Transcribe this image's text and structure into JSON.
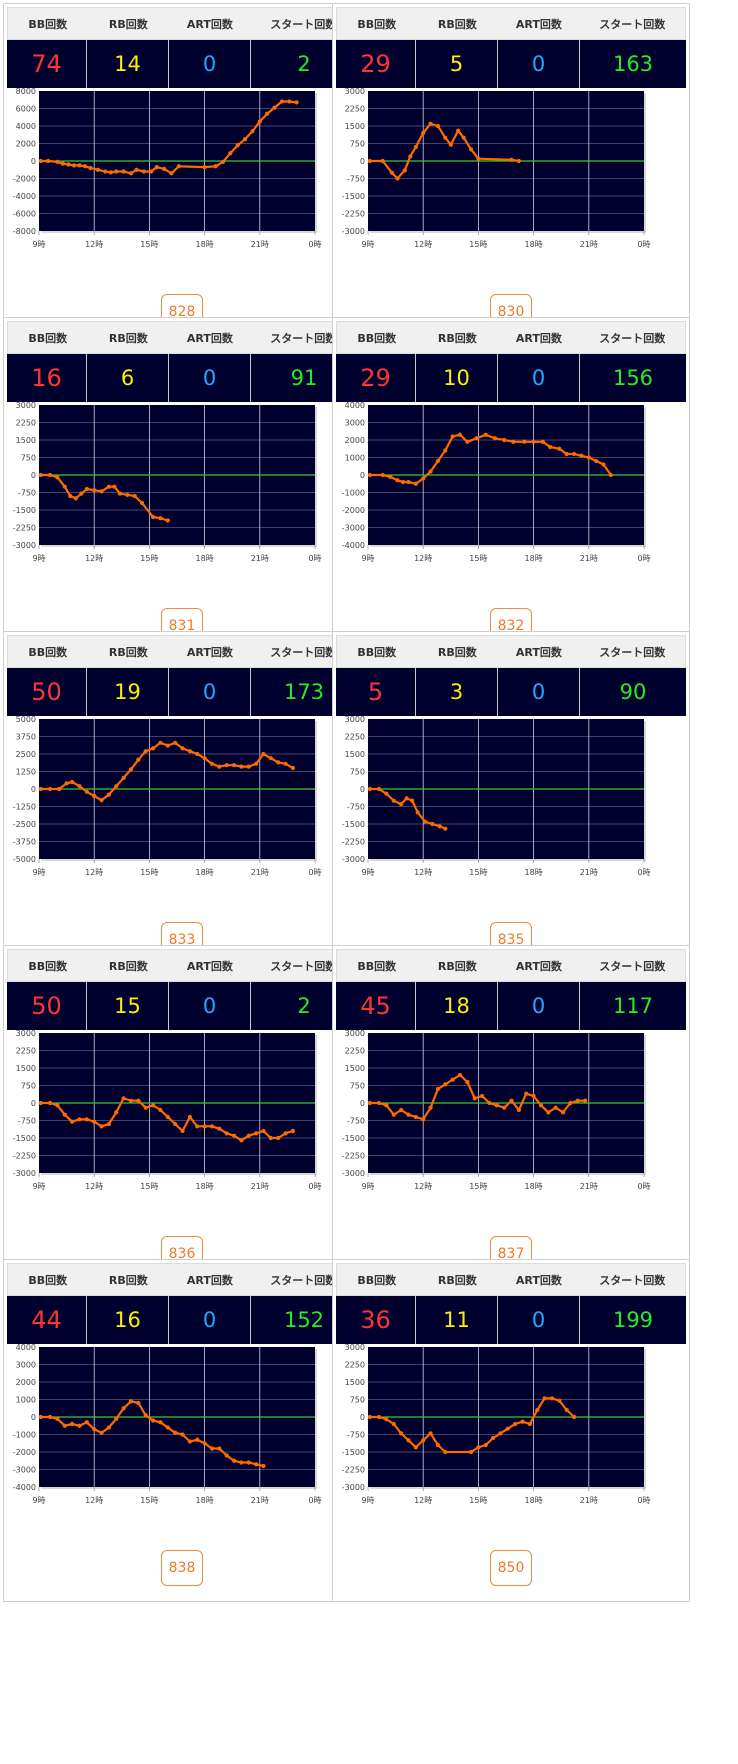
{
  "headers": {
    "bb": "BB回数",
    "rb": "RB回数",
    "art": "ART回数",
    "start": "スタート回数"
  },
  "colors": {
    "plot_bg": "#00002e",
    "line": "#ff6a00",
    "zero": "#33cc33",
    "bb": "#ff3333",
    "rb": "#ffee00",
    "art": "#1eaaff",
    "start": "#22ee22",
    "button": "#f07a2a"
  },
  "machines": [
    {
      "bb": "74",
      "rb": "14",
      "art": "0",
      "start": "2",
      "number": "828"
    },
    {
      "bb": "29",
      "rb": "5",
      "art": "0",
      "start": "163",
      "number": "830"
    },
    {
      "bb": "16",
      "rb": "6",
      "art": "0",
      "start": "91",
      "number": "831"
    },
    {
      "bb": "29",
      "rb": "10",
      "art": "0",
      "start": "156",
      "number": "832"
    },
    {
      "bb": "50",
      "rb": "19",
      "art": "0",
      "start": "173",
      "number": "833"
    },
    {
      "bb": "5",
      "rb": "3",
      "art": "0",
      "start": "90",
      "number": "835"
    },
    {
      "bb": "50",
      "rb": "15",
      "art": "0",
      "start": "2",
      "number": "836"
    },
    {
      "bb": "45",
      "rb": "18",
      "art": "0",
      "start": "117",
      "number": "837"
    },
    {
      "bb": "44",
      "rb": "16",
      "art": "0",
      "start": "152",
      "number": "838"
    },
    {
      "bb": "36",
      "rb": "11",
      "art": "0",
      "start": "199",
      "number": "850"
    }
  ],
  "chart_data": [
    {
      "type": "line",
      "xticks": [
        "9時",
        "12時",
        "15時",
        "18時",
        "21時",
        "0時"
      ],
      "xlim": [
        9,
        24
      ],
      "ylim": [
        -8000,
        8000
      ],
      "yticks": [
        8000,
        6000,
        4000,
        2000,
        0,
        -2000,
        -4000,
        -6000,
        -8000
      ],
      "x": [
        9.1,
        9.5,
        10,
        10.3,
        10.6,
        10.9,
        11.2,
        11.5,
        11.8,
        12.2,
        12.6,
        12.9,
        13.2,
        13.6,
        14,
        14.3,
        14.7,
        15.1,
        15.4,
        15.8,
        16.2,
        16.6,
        18,
        18.6,
        19,
        19.4,
        19.8,
        20.2,
        20.6,
        21,
        21.4,
        21.8,
        22.2,
        22.6,
        23
      ],
      "y": [
        0,
        0,
        -100,
        -300,
        -400,
        -500,
        -500,
        -600,
        -800,
        -1000,
        -1200,
        -1300,
        -1200,
        -1200,
        -1400,
        -1000,
        -1200,
        -1200,
        -700,
        -900,
        -1400,
        -600,
        -700,
        -600,
        -100,
        900,
        1800,
        2500,
        3400,
        4500,
        5400,
        6100,
        6800,
        6800,
        6700
      ]
    },
    {
      "type": "line",
      "xticks": [
        "9時",
        "12時",
        "15時",
        "18時",
        "21時",
        "0時"
      ],
      "xlim": [
        9,
        24
      ],
      "ylim": [
        -3000,
        3000
      ],
      "yticks": [
        3000,
        2250,
        1500,
        750,
        0,
        -750,
        -1500,
        -2250,
        -3000
      ],
      "x": [
        9.1,
        9.8,
        10.3,
        10.6,
        11,
        11.3,
        11.6,
        12,
        12.4,
        12.8,
        13.2,
        13.5,
        13.9,
        14.2,
        14.6,
        15,
        16.8,
        17.2
      ],
      "y": [
        0,
        0,
        -500,
        -750,
        -400,
        200,
        600,
        1200,
        1600,
        1500,
        1000,
        700,
        1300,
        1000,
        500,
        100,
        50,
        0
      ]
    },
    {
      "type": "line",
      "xticks": [
        "9時",
        "12時",
        "15時",
        "18時",
        "21時",
        "0時"
      ],
      "xlim": [
        9,
        24
      ],
      "ylim": [
        -3000,
        3000
      ],
      "yticks": [
        3000,
        2250,
        1500,
        750,
        0,
        -750,
        -1500,
        -2250,
        -3000
      ],
      "x": [
        9.1,
        9.6,
        10,
        10.4,
        10.7,
        11,
        11.3,
        11.6,
        12,
        12.4,
        12.8,
        13.1,
        13.4,
        13.8,
        14.2,
        14.6,
        15.2,
        15.6,
        16
      ],
      "y": [
        0,
        0,
        -100,
        -500,
        -900,
        -1000,
        -800,
        -600,
        -650,
        -700,
        -500,
        -500,
        -800,
        -850,
        -900,
        -1200,
        -1800,
        -1850,
        -1950
      ]
    },
    {
      "type": "line",
      "xticks": [
        "9時",
        "12時",
        "15時",
        "18時",
        "21時",
        "0時"
      ],
      "xlim": [
        9,
        24
      ],
      "ylim": [
        -4000,
        4000
      ],
      "yticks": [
        4000,
        3000,
        2000,
        1000,
        0,
        -1000,
        -2000,
        -3000,
        -4000
      ],
      "x": [
        9.1,
        9.8,
        10.2,
        10.6,
        10.9,
        11.2,
        11.6,
        12,
        12.4,
        12.8,
        13.2,
        13.6,
        14,
        14.4,
        14.9,
        15.4,
        15.9,
        16.4,
        16.9,
        17.5,
        18,
        18.5,
        18.9,
        19.4,
        19.8,
        20.2,
        20.6,
        21,
        21.4,
        21.8,
        22.2
      ],
      "y": [
        0,
        0,
        -100,
        -300,
        -400,
        -400,
        -500,
        -200,
        200,
        800,
        1400,
        2200,
        2300,
        1900,
        2100,
        2300,
        2100,
        2000,
        1900,
        1900,
        1900,
        1900,
        1600,
        1500,
        1200,
        1200,
        1100,
        1000,
        800,
        600,
        0
      ]
    },
    {
      "type": "line",
      "xticks": [
        "9時",
        "12時",
        "15時",
        "18時",
        "21時",
        "0時"
      ],
      "xlim": [
        9,
        24
      ],
      "ylim": [
        -5000,
        5000
      ],
      "yticks": [
        5000,
        3750,
        2500,
        1250,
        0,
        -1250,
        -2500,
        -3750,
        -5000
      ],
      "x": [
        9.1,
        9.6,
        10.1,
        10.5,
        10.8,
        11.2,
        11.6,
        12,
        12.4,
        12.8,
        13.2,
        13.6,
        14,
        14.4,
        14.8,
        15.2,
        15.6,
        16,
        16.4,
        16.8,
        17.2,
        17.6,
        18,
        18.4,
        18.8,
        19.2,
        19.6,
        20,
        20.4,
        20.8,
        21.2,
        21.6,
        22,
        22.4,
        22.8
      ],
      "y": [
        0,
        0,
        0,
        400,
        500,
        200,
        -200,
        -500,
        -800,
        -400,
        200,
        800,
        1400,
        2100,
        2700,
        2900,
        3300,
        3100,
        3300,
        2900,
        2700,
        2500,
        2200,
        1800,
        1600,
        1700,
        1700,
        1600,
        1600,
        1800,
        2500,
        2200,
        1900,
        1800,
        1500
      ]
    },
    {
      "type": "line",
      "xticks": [
        "9時",
        "12時",
        "15時",
        "18時",
        "21時",
        "0時"
      ],
      "xlim": [
        9,
        24
      ],
      "ylim": [
        -3000,
        3000
      ],
      "yticks": [
        3000,
        2250,
        1500,
        750,
        0,
        -750,
        -1500,
        -2250,
        -3000
      ],
      "x": [
        9.1,
        9.6,
        10,
        10.4,
        10.8,
        11.1,
        11.4,
        11.7,
        12.1,
        12.5,
        12.9,
        13.2
      ],
      "y": [
        0,
        0,
        -200,
        -500,
        -650,
        -400,
        -500,
        -1000,
        -1400,
        -1500,
        -1600,
        -1700
      ]
    },
    {
      "type": "line",
      "xticks": [
        "9時",
        "12時",
        "15時",
        "18時",
        "21時",
        "0時"
      ],
      "xlim": [
        9,
        24
      ],
      "ylim": [
        -3000,
        3000
      ],
      "yticks": [
        3000,
        2250,
        1500,
        750,
        0,
        -750,
        -1500,
        -2250,
        -3000
      ],
      "x": [
        9.1,
        9.6,
        10,
        10.4,
        10.8,
        11.2,
        11.6,
        12,
        12.4,
        12.8,
        13.2,
        13.6,
        14,
        14.4,
        14.8,
        15.2,
        15.6,
        16,
        16.4,
        16.8,
        17.2,
        17.6,
        18,
        18.4,
        18.8,
        19.2,
        19.6,
        20,
        20.4,
        20.8,
        21.2,
        21.6,
        22,
        22.4,
        22.8
      ],
      "y": [
        0,
        0,
        -100,
        -500,
        -800,
        -700,
        -700,
        -800,
        -1000,
        -900,
        -400,
        200,
        100,
        100,
        -200,
        -100,
        -300,
        -600,
        -900,
        -1200,
        -600,
        -1000,
        -1000,
        -1000,
        -1100,
        -1300,
        -1400,
        -1600,
        -1400,
        -1300,
        -1200,
        -1500,
        -1500,
        -1300,
        -1200
      ]
    },
    {
      "type": "line",
      "xticks": [
        "9時",
        "12時",
        "15時",
        "18時",
        "21時",
        "0時"
      ],
      "xlim": [
        9,
        24
      ],
      "ylim": [
        -3000,
        3000
      ],
      "yticks": [
        3000,
        2250,
        1500,
        750,
        0,
        -750,
        -1500,
        -2250,
        -3000
      ],
      "x": [
        9.1,
        9.6,
        10,
        10.4,
        10.8,
        11.2,
        11.6,
        12,
        12.4,
        12.8,
        13.2,
        13.6,
        14,
        14.4,
        14.8,
        15.2,
        15.6,
        16,
        16.4,
        16.8,
        17.2,
        17.6,
        18,
        18.4,
        18.8,
        19.2,
        19.6,
        20,
        20.4,
        20.8
      ],
      "y": [
        0,
        0,
        -100,
        -500,
        -300,
        -500,
        -600,
        -700,
        -200,
        600,
        800,
        1000,
        1200,
        900,
        200,
        300,
        0,
        -100,
        -200,
        100,
        -300,
        400,
        300,
        -100,
        -400,
        -200,
        -400,
        0,
        100,
        100
      ]
    },
    {
      "type": "line",
      "xticks": [
        "9時",
        "12時",
        "15時",
        "18時",
        "21時",
        "0時"
      ],
      "xlim": [
        9,
        24
      ],
      "ylim": [
        -4000,
        4000
      ],
      "yticks": [
        4000,
        3000,
        2000,
        1000,
        0,
        -1000,
        -2000,
        -3000,
        -4000
      ],
      "x": [
        9.1,
        9.6,
        10,
        10.4,
        10.8,
        11.2,
        11.6,
        12,
        12.4,
        12.8,
        13.2,
        13.6,
        14,
        14.4,
        14.8,
        15.2,
        15.6,
        16,
        16.4,
        16.8,
        17.2,
        17.6,
        18,
        18.4,
        18.8,
        19.2,
        19.6,
        20,
        20.4,
        20.8,
        21.2
      ],
      "y": [
        0,
        0,
        -100,
        -500,
        -400,
        -500,
        -300,
        -700,
        -900,
        -600,
        -100,
        500,
        900,
        800,
        100,
        -200,
        -300,
        -600,
        -900,
        -1000,
        -1400,
        -1300,
        -1500,
        -1800,
        -1800,
        -2200,
        -2500,
        -2600,
        -2600,
        -2700,
        -2800
      ]
    },
    {
      "type": "line",
      "xticks": [
        "9時",
        "12時",
        "15時",
        "18時",
        "21時",
        "0時"
      ],
      "xlim": [
        9,
        24
      ],
      "ylim": [
        -3000,
        3000
      ],
      "yticks": [
        3000,
        2250,
        1500,
        750,
        0,
        -750,
        -1500,
        -2250,
        -3000
      ],
      "x": [
        9.1,
        9.6,
        10,
        10.4,
        10.8,
        11.2,
        11.6,
        12,
        12.4,
        12.8,
        13.2,
        14.6,
        15,
        15.4,
        15.8,
        16.2,
        16.6,
        17,
        17.4,
        17.8,
        18.2,
        18.6,
        19,
        19.4,
        19.8,
        20.2
      ],
      "y": [
        0,
        0,
        -100,
        -300,
        -700,
        -1000,
        -1300,
        -1000,
        -700,
        -1200,
        -1500,
        -1500,
        -1300,
        -1200,
        -900,
        -700,
        -500,
        -300,
        -200,
        -300,
        300,
        800,
        800,
        700,
        300,
        0
      ]
    }
  ]
}
